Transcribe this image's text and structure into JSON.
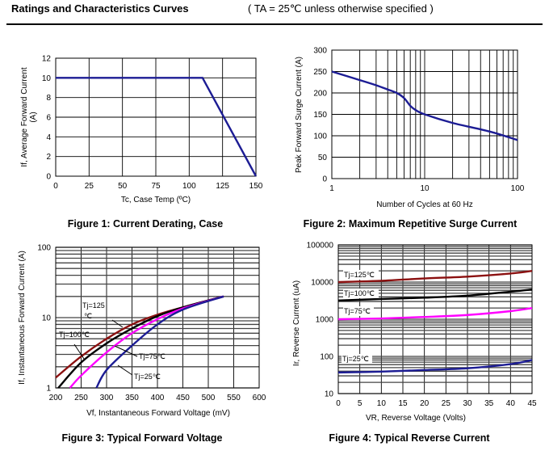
{
  "header": {
    "title": "Ratings and Characteristics Curves",
    "subtitle": "( TA = 25℃  unless otherwise specified )"
  },
  "chart_data": [
    {
      "type": "line",
      "title": "Figure 1: Current Derating, Case",
      "xlabel": "Tc, Case Temp (ºC)",
      "ylabel": [
        "If, Average Forward Current",
        "(A)"
      ],
      "xlim": [
        0,
        150
      ],
      "ylim": [
        0,
        12
      ],
      "xticks": [
        0,
        25,
        50,
        75,
        100,
        125,
        150
      ],
      "yticks": [
        0,
        2,
        4,
        6,
        8,
        10,
        12
      ],
      "grid": true,
      "xscale": "linear",
      "yscale": "linear",
      "series": [
        {
          "color": "#1c1c94",
          "x": [
            0,
            110,
            150
          ],
          "y": [
            10,
            10,
            0
          ]
        }
      ]
    },
    {
      "type": "line",
      "title": "Figure 2: Maximum Repetitive Surge Current",
      "xlabel": "Number of Cycles at 60 Hz",
      "ylabel": [
        "Peak Forward Surge Current (A)"
      ],
      "xlim": [
        1,
        100
      ],
      "ylim": [
        0,
        300
      ],
      "xticks": [
        1,
        10,
        100
      ],
      "yticks": [
        0,
        50,
        100,
        150,
        200,
        250,
        300
      ],
      "grid": true,
      "xscale": "log",
      "yscale": "linear",
      "series": [
        {
          "color": "#1c1c94",
          "x": [
            1,
            2,
            3,
            4,
            5,
            6,
            7,
            8,
            10,
            20,
            50,
            100
          ],
          "y": [
            250,
            230,
            218,
            208,
            200,
            188,
            170,
            160,
            150,
            130,
            110,
            90
          ]
        }
      ]
    },
    {
      "type": "line",
      "title": "Figure 3: Typical Forward Voltage",
      "xlabel": "Vf, Instantaneous Forward  Voltage (mV)",
      "ylabel": [
        "If, Instantaneous Forward Current (A)"
      ],
      "xlim": [
        200,
        600
      ],
      "ylim": [
        1,
        100
      ],
      "xticks": [
        200,
        250,
        300,
        350,
        400,
        450,
        500,
        550,
        600
      ],
      "yticks": [
        1,
        10,
        100
      ],
      "grid": true,
      "xscale": "linear",
      "yscale": "log",
      "series": [
        {
          "name": "Tj=125℃",
          "color": "#8b1010",
          "x": [
            200,
            250,
            300,
            350,
            400,
            450,
            530
          ],
          "y": [
            1.4,
            2.8,
            5,
            8,
            11,
            14,
            20
          ]
        },
        {
          "name": "Tj=100℃",
          "color": "#000000",
          "x": [
            205,
            250,
            300,
            350,
            400,
            450,
            530
          ],
          "y": [
            1,
            2.3,
            4.3,
            7,
            10.5,
            14,
            20
          ]
        },
        {
          "name": "Tj=75℃",
          "color": "#ff00ff",
          "x": [
            228,
            250,
            300,
            350,
            400,
            450,
            530
          ],
          "y": [
            1,
            1.5,
            3.2,
            6,
            9.5,
            13.5,
            20
          ]
        },
        {
          "name": "Tj=25℃",
          "color": "#1c1c94",
          "x": [
            280,
            300,
            350,
            400,
            450,
            530
          ],
          "y": [
            1,
            1.8,
            4,
            8,
            13,
            20
          ]
        }
      ],
      "annotations": [
        "Tj=125",
        "℃",
        "Tj=100℃",
        "Tj=75℃",
        "Tj=25℃"
      ]
    },
    {
      "type": "line",
      "title": "Figure 4: Typical Reverse Current",
      "xlabel": "VR, Reverse Voltage (Volts)",
      "ylabel": [
        "Ir, Reverse Current (uA)"
      ],
      "xlim": [
        0,
        45
      ],
      "ylim": [
        10,
        100000
      ],
      "xticks": [
        0,
        5,
        10,
        15,
        20,
        25,
        30,
        35,
        40,
        45
      ],
      "yticks": [
        10,
        100,
        1000,
        10000,
        100000
      ],
      "grid": true,
      "xscale": "linear",
      "yscale": "log",
      "series": [
        {
          "name": "Tj=125℃",
          "color": "#8b1010",
          "x": [
            0,
            10,
            20,
            30,
            40,
            45
          ],
          "y": [
            10000,
            10800,
            12500,
            14000,
            17000,
            20000
          ]
        },
        {
          "name": "Tj=100℃",
          "color": "#000000",
          "x": [
            0,
            10,
            20,
            30,
            40,
            45
          ],
          "y": [
            3200,
            3500,
            3800,
            4300,
            5500,
            6300
          ]
        },
        {
          "name": "Tj=75℃",
          "color": "#ff00ff",
          "x": [
            0,
            10,
            20,
            30,
            40,
            45
          ],
          "y": [
            1000,
            1050,
            1150,
            1300,
            1650,
            2000
          ]
        },
        {
          "name": "Tj=25℃",
          "color": "#1c1c94",
          "x": [
            0,
            10,
            20,
            30,
            40,
            45
          ],
          "y": [
            37,
            39,
            43,
            48,
            62,
            80
          ]
        }
      ]
    }
  ]
}
